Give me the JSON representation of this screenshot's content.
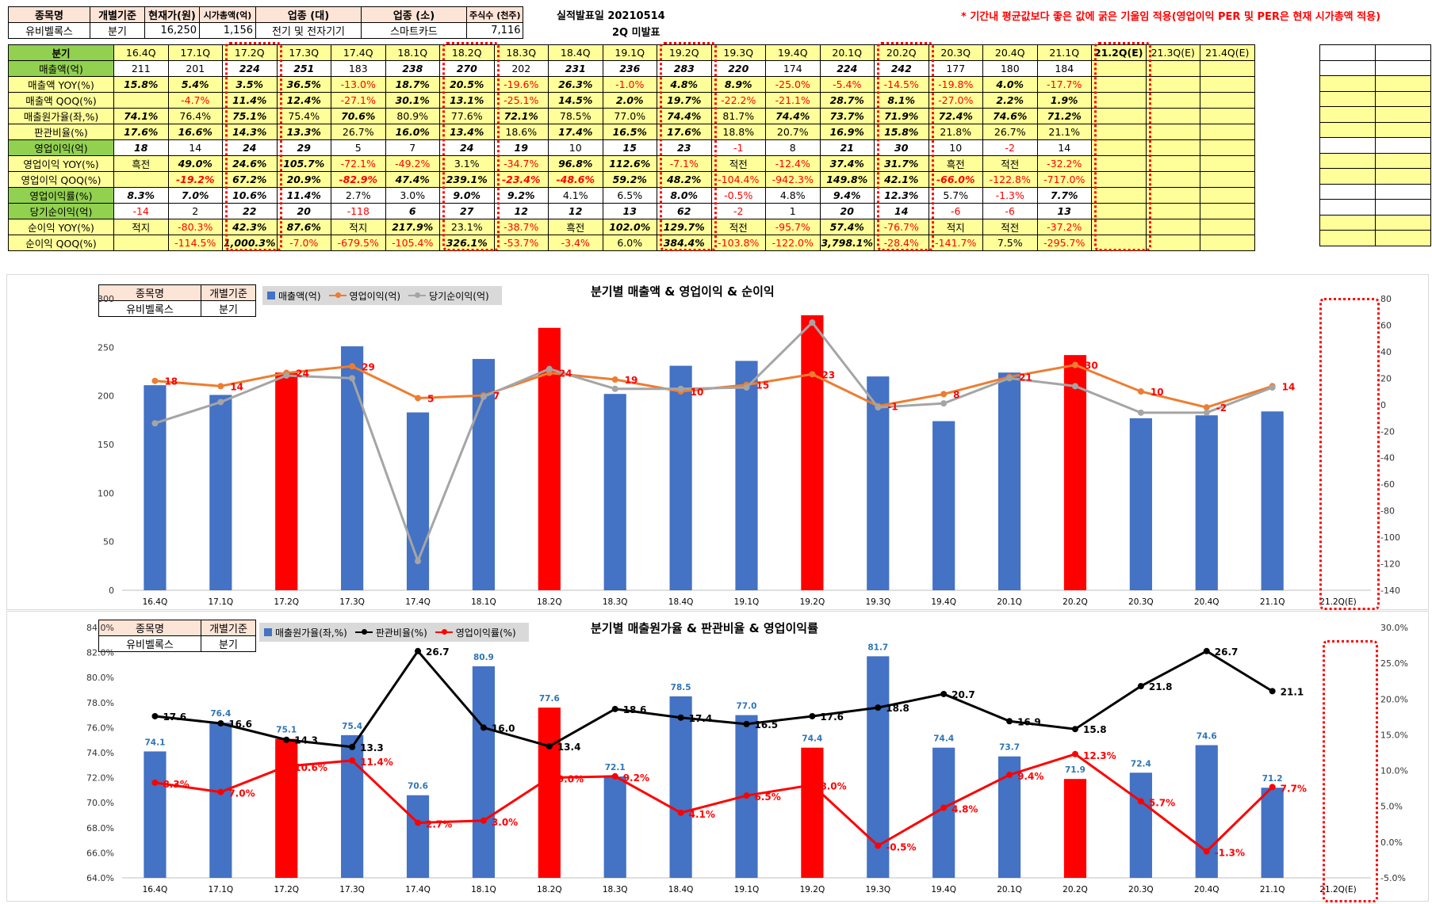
{
  "header": {
    "label_company": "종목명",
    "company": "유비벨록스",
    "label_basis": "개별기준",
    "basis": "분기",
    "label_price": "현재가(원)",
    "price": "16,250",
    "label_mcap": "시가총액(억)",
    "mcap": "1,156",
    "label_sector_l": "업종 (대)",
    "sector_l": "전기 및 전자기기",
    "label_sector_s": "업종 (소)",
    "sector_s": "스마트카드",
    "label_shares": "주식수 (천주)",
    "shares": "7,116",
    "announce_label": "실적발표일",
    "announce_date": "20210514",
    "announce_status": "2Q 미발표",
    "note": "* 기간내 평균값보다 좋은 값에 굵은 기울임 적용(영업이익 PER 및 PER은 현재 시가총액 적용)"
  },
  "table": {
    "corner": "분기",
    "quarters": [
      "16.4Q",
      "17.1Q",
      "17.2Q",
      "17.3Q",
      "17.4Q",
      "18.1Q",
      "18.2Q",
      "18.3Q",
      "18.4Q",
      "19.1Q",
      "19.2Q",
      "19.3Q",
      "19.4Q",
      "20.1Q",
      "20.2Q",
      "20.3Q",
      "20.4Q",
      "21.1Q",
      "21.2Q(E)",
      "21.3Q(E)",
      "21.4Q(E)"
    ],
    "rows": [
      {
        "label": "매출액(억)",
        "green": true,
        "cells": [
          "211",
          "201",
          "224",
          "251",
          "183",
          "238",
          "270",
          "202",
          "231",
          "236",
          "283",
          "220",
          "174",
          "224",
          "242",
          "177",
          "180",
          "184",
          "",
          "",
          ""
        ],
        "bold": [
          0,
          0,
          1,
          1,
          0,
          1,
          1,
          0,
          1,
          1,
          1,
          1,
          0,
          1,
          1,
          0,
          0,
          0
        ]
      },
      {
        "label": "매출액 YOY(%)",
        "green": false,
        "cells": [
          "15.8%",
          "5.4%",
          "3.5%",
          "36.5%",
          "-13.0%",
          "18.7%",
          "20.5%",
          "-19.6%",
          "26.3%",
          "-1.0%",
          "4.8%",
          "8.9%",
          "-25.0%",
          "-5.4%",
          "-14.5%",
          "-19.8%",
          "4.0%",
          "-17.7%",
          "",
          "",
          ""
        ],
        "bold": [
          1,
          1,
          1,
          1,
          0,
          1,
          1,
          0,
          1,
          0,
          1,
          1,
          0,
          0,
          0,
          0,
          1,
          0
        ]
      },
      {
        "label": "매출액 QOQ(%)",
        "green": false,
        "cells": [
          "",
          "-4.7%",
          "11.4%",
          "12.4%",
          "-27.1%",
          "30.1%",
          "13.1%",
          "-25.1%",
          "14.5%",
          "2.0%",
          "19.7%",
          "-22.2%",
          "-21.1%",
          "28.7%",
          "8.1%",
          "-27.0%",
          "2.2%",
          "1.9%",
          "",
          "",
          ""
        ],
        "bold": [
          0,
          0,
          1,
          1,
          0,
          1,
          1,
          0,
          1,
          1,
          1,
          0,
          0,
          1,
          1,
          0,
          1,
          1
        ]
      },
      {
        "label": "매출원가율(좌,%)",
        "green": false,
        "cells": [
          "74.1%",
          "76.4%",
          "75.1%",
          "75.4%",
          "70.6%",
          "80.9%",
          "77.6%",
          "72.1%",
          "78.5%",
          "77.0%",
          "74.4%",
          "81.7%",
          "74.4%",
          "73.7%",
          "71.9%",
          "72.4%",
          "74.6%",
          "71.2%",
          "",
          "",
          ""
        ],
        "bold": [
          1,
          0,
          1,
          0,
          1,
          0,
          0,
          1,
          0,
          0,
          1,
          0,
          1,
          1,
          1,
          1,
          1,
          1
        ]
      },
      {
        "label": "판관비율(%)",
        "green": false,
        "cells": [
          "17.6%",
          "16.6%",
          "14.3%",
          "13.3%",
          "26.7%",
          "16.0%",
          "13.4%",
          "18.6%",
          "17.4%",
          "16.5%",
          "17.6%",
          "18.8%",
          "20.7%",
          "16.9%",
          "15.8%",
          "21.8%",
          "26.7%",
          "21.1%",
          "",
          "",
          ""
        ],
        "bold": [
          1,
          1,
          1,
          1,
          0,
          1,
          1,
          0,
          1,
          1,
          1,
          0,
          0,
          1,
          1,
          0,
          0,
          0
        ]
      },
      {
        "label": "영업이익(억)",
        "green": true,
        "cells": [
          "18",
          "14",
          "24",
          "29",
          "5",
          "7",
          "24",
          "19",
          "10",
          "15",
          "23",
          "-1",
          "8",
          "21",
          "30",
          "10",
          "-2",
          "14",
          "",
          "",
          ""
        ],
        "bold": [
          1,
          0,
          1,
          1,
          0,
          0,
          1,
          1,
          0,
          1,
          1,
          0,
          0,
          1,
          1,
          0,
          0,
          0
        ]
      },
      {
        "label": "영업이익 YOY(%)",
        "green": false,
        "cells": [
          "흑전",
          "49.0%",
          "24.6%",
          "105.7%",
          "-72.1%",
          "-49.2%",
          "3.1%",
          "-34.7%",
          "96.8%",
          "112.6%",
          "-7.1%",
          "적전",
          "-12.4%",
          "37.4%",
          "31.7%",
          "흑전",
          "적전",
          "-32.2%",
          "",
          "",
          ""
        ],
        "bold": [
          0,
          1,
          1,
          1,
          0,
          0,
          0,
          0,
          1,
          1,
          0,
          0,
          0,
          1,
          1,
          0,
          0,
          0
        ]
      },
      {
        "label": "영업이익 QOQ(%)",
        "green": false,
        "cells": [
          "",
          "-19.2%",
          "67.2%",
          "20.9%",
          "-82.9%",
          "47.4%",
          "239.1%",
          "-23.4%",
          "-48.6%",
          "59.2%",
          "48.2%",
          "-104.4%",
          "-942.3%",
          "149.8%",
          "42.1%",
          "-66.0%",
          "-122.8%",
          "-717.0%",
          "",
          "",
          ""
        ],
        "bold": [
          0,
          1,
          1,
          1,
          1,
          1,
          1,
          1,
          1,
          1,
          1,
          0,
          0,
          1,
          1,
          1,
          0,
          0
        ]
      },
      {
        "label": "영업이익률(%)",
        "green": true,
        "cells": [
          "8.3%",
          "7.0%",
          "10.6%",
          "11.4%",
          "2.7%",
          "3.0%",
          "9.0%",
          "9.2%",
          "4.1%",
          "6.5%",
          "8.0%",
          "-0.5%",
          "4.8%",
          "9.4%",
          "12.3%",
          "5.7%",
          "-1.3%",
          "7.7%",
          "",
          "",
          ""
        ],
        "bold": [
          1,
          1,
          1,
          1,
          0,
          0,
          1,
          1,
          0,
          0,
          1,
          0,
          0,
          1,
          1,
          0,
          0,
          1
        ]
      },
      {
        "label": "당기순이익(억)",
        "green": true,
        "cells": [
          "-14",
          "2",
          "22",
          "20",
          "-118",
          "6",
          "27",
          "12",
          "12",
          "13",
          "62",
          "-2",
          "1",
          "20",
          "14",
          "-6",
          "-6",
          "13",
          "",
          "",
          ""
        ],
        "bold": [
          0,
          0,
          1,
          1,
          0,
          1,
          1,
          1,
          1,
          1,
          1,
          0,
          0,
          1,
          1,
          0,
          0,
          1
        ]
      },
      {
        "label": "순이익 YOY(%)",
        "green": false,
        "cells": [
          "적지",
          "-80.3%",
          "42.3%",
          "87.6%",
          "적지",
          "217.9%",
          "23.1%",
          "-38.7%",
          "흑전",
          "102.0%",
          "129.7%",
          "적전",
          "-95.7%",
          "57.4%",
          "-76.7%",
          "적지",
          "적전",
          "-37.2%",
          "",
          "",
          ""
        ],
        "bold": [
          0,
          0,
          1,
          1,
          0,
          1,
          0,
          0,
          0,
          1,
          1,
          0,
          0,
          1,
          0,
          0,
          0,
          0
        ]
      },
      {
        "label": "순이익 QOQ(%)",
        "green": false,
        "cells": [
          "",
          "-114.5%",
          "1,000.3%",
          "-7.0%",
          "-679.5%",
          "-105.4%",
          "326.1%",
          "-53.7%",
          "-3.4%",
          "6.0%",
          "384.4%",
          "-103.8%",
          "-122.0%",
          "3,798.1%",
          "-28.4%",
          "-141.7%",
          "7.5%",
          "-295.7%",
          "",
          "",
          ""
        ],
        "bold": [
          0,
          0,
          1,
          0,
          0,
          0,
          1,
          0,
          0,
          0,
          1,
          0,
          0,
          1,
          0,
          0,
          0,
          0
        ]
      }
    ]
  },
  "chart1": {
    "title": "분기별 매출액 & 영업이익 & 순이익",
    "mini": {
      "label_company": "종목명",
      "company": "유비벨록스",
      "label_basis": "개별기준",
      "basis": "분기"
    },
    "legend": [
      "매출액(억)",
      "영업이익(억)",
      "당기순이익(억)"
    ],
    "colors": {
      "bar": "#4472c4",
      "highlight": "#ff0000",
      "line1": "#ed7d31",
      "line2": "#a5a5a5",
      "label": "#ff0000"
    },
    "left_ticks": [
      "0",
      "50",
      "100",
      "150",
      "200",
      "250",
      "300"
    ],
    "right_ticks": [
      "-140",
      "-120",
      "-100",
      "-80",
      "-60",
      "-40",
      "-20",
      "0",
      "20",
      "40",
      "60",
      "80"
    ],
    "categories": [
      "16.4Q",
      "17.1Q",
      "17.2Q",
      "17.3Q",
      "17.4Q",
      "18.1Q",
      "18.2Q",
      "18.3Q",
      "18.4Q",
      "19.1Q",
      "19.2Q",
      "19.3Q",
      "19.4Q",
      "20.1Q",
      "20.2Q",
      "20.3Q",
      "20.4Q",
      "21.1Q",
      "21.2Q(E)"
    ],
    "op_labels": [
      "18",
      "14",
      "24",
      "29",
      "5",
      "7",
      "24",
      "19",
      "10",
      "15",
      "23",
      "-1",
      "8",
      "21",
      "30",
      "10",
      "-2",
      "14"
    ]
  },
  "chart2": {
    "title": "분기별 매출원가율 & 판관비율 & 영업이익률",
    "mini": {
      "label_company": "종목명",
      "company": "유비벨록스",
      "label_basis": "개별기준",
      "basis": "분기"
    },
    "legend": [
      "매출원가율(좌,%)",
      "판관비율(%)",
      "영업이익률(%)"
    ],
    "colors": {
      "bar": "#4472c4",
      "highlight": "#ff0000",
      "line1": "#000000",
      "line2": "#ff0000",
      "barlabel": "#2e75b6"
    },
    "left_ticks": [
      "64.0%",
      "66.0%",
      "68.0%",
      "70.0%",
      "72.0%",
      "74.0%",
      "76.0%",
      "78.0%",
      "80.0%",
      "82.0%",
      "84.0%"
    ],
    "right_ticks": [
      "-5.0%",
      "0.0%",
      "5.0%",
      "10.0%",
      "15.0%",
      "20.0%",
      "25.0%",
      "30.0%"
    ],
    "categories": [
      "16.4Q",
      "17.1Q",
      "17.2Q",
      "17.3Q",
      "17.4Q",
      "18.1Q",
      "18.2Q",
      "18.3Q",
      "18.4Q",
      "19.1Q",
      "19.2Q",
      "19.3Q",
      "19.4Q",
      "20.1Q",
      "20.2Q",
      "20.3Q",
      "20.4Q",
      "21.1Q",
      "21.2Q(E)"
    ],
    "bar_labels": [
      "74.1",
      "76.4",
      "75.1",
      "75.4",
      "70.6",
      "80.9",
      "77.6",
      "72.1",
      "78.5",
      "77.0",
      "74.4",
      "81.7",
      "74.4",
      "73.7",
      "71.9",
      "72.4",
      "74.6",
      "71.2"
    ],
    "sga_labels": [
      "17.6",
      "16.6",
      "14.3",
      "13.3",
      "26.7",
      "16.0",
      "13.4",
      "18.6",
      "17.4",
      "16.5",
      "17.6",
      "18.8",
      "20.7",
      "16.9",
      "15.8",
      "21.8",
      "26.7",
      "21.1"
    ],
    "opm_labels": [
      "8.3%",
      "7.0%",
      "10.6%",
      "11.4%",
      "2.7%",
      "3.0%",
      "9.0%",
      "9.2%",
      "4.1%",
      "6.5%",
      "8.0%",
      "-0.5%",
      "4.8%",
      "9.4%",
      "12.3%",
      "5.7%",
      "-1.3%",
      "7.7%"
    ]
  },
  "chart_data": [
    {
      "type": "bar",
      "title": "분기별 매출액 & 영업이익 & 순이익",
      "categories": [
        "16.4Q",
        "17.1Q",
        "17.2Q",
        "17.3Q",
        "17.4Q",
        "18.1Q",
        "18.2Q",
        "18.3Q",
        "18.4Q",
        "19.1Q",
        "19.2Q",
        "19.3Q",
        "19.4Q",
        "20.1Q",
        "20.2Q",
        "20.3Q",
        "20.4Q",
        "21.1Q",
        "21.2Q(E)"
      ],
      "series": [
        {
          "name": "매출액(억)",
          "axis": "left",
          "type": "bar",
          "values": [
            211,
            201,
            224,
            251,
            183,
            238,
            270,
            202,
            231,
            236,
            283,
            220,
            174,
            224,
            242,
            177,
            180,
            184,
            null
          ]
        },
        {
          "name": "영업이익(억)",
          "axis": "right",
          "type": "line",
          "values": [
            18,
            14,
            24,
            29,
            5,
            7,
            24,
            19,
            10,
            15,
            23,
            -1,
            8,
            21,
            30,
            10,
            -2,
            14,
            null
          ]
        },
        {
          "name": "당기순이익(억)",
          "axis": "right",
          "type": "line",
          "values": [
            -14,
            2,
            22,
            20,
            -118,
            6,
            27,
            12,
            12,
            13,
            62,
            -2,
            1,
            20,
            14,
            -6,
            -6,
            13,
            null
          ]
        }
      ],
      "highlight_categories": [
        "17.2Q",
        "18.2Q",
        "19.2Q",
        "20.2Q"
      ],
      "ylim": [
        0,
        300
      ],
      "y2lim": [
        -140,
        80
      ],
      "legend_position": "top-left"
    },
    {
      "type": "bar",
      "title": "분기별 매출원가율 & 판관비율 & 영업이익률",
      "categories": [
        "16.4Q",
        "17.1Q",
        "17.2Q",
        "17.3Q",
        "17.4Q",
        "18.1Q",
        "18.2Q",
        "18.3Q",
        "18.4Q",
        "19.1Q",
        "19.2Q",
        "19.3Q",
        "19.4Q",
        "20.1Q",
        "20.2Q",
        "20.3Q",
        "20.4Q",
        "21.1Q",
        "21.2Q(E)"
      ],
      "series": [
        {
          "name": "매출원가율(좌,%)",
          "axis": "left",
          "type": "bar",
          "values": [
            74.1,
            76.4,
            75.1,
            75.4,
            70.6,
            80.9,
            77.6,
            72.1,
            78.5,
            77.0,
            74.4,
            81.7,
            74.4,
            73.7,
            71.9,
            72.4,
            74.6,
            71.2,
            null
          ]
        },
        {
          "name": "판관비율(%)",
          "axis": "right",
          "type": "line",
          "values": [
            17.6,
            16.6,
            14.3,
            13.3,
            26.7,
            16.0,
            13.4,
            18.6,
            17.4,
            16.5,
            17.6,
            18.8,
            20.7,
            16.9,
            15.8,
            21.8,
            26.7,
            21.1,
            null
          ]
        },
        {
          "name": "영업이익률(%)",
          "axis": "right",
          "type": "line",
          "values": [
            8.3,
            7.0,
            10.6,
            11.4,
            2.7,
            3.0,
            9.0,
            9.2,
            4.1,
            6.5,
            8.0,
            -0.5,
            4.8,
            9.4,
            12.3,
            5.7,
            -1.3,
            7.7,
            null
          ]
        }
      ],
      "highlight_categories": [
        "17.2Q",
        "18.2Q",
        "19.2Q",
        "20.2Q"
      ],
      "ylim": [
        64,
        84
      ],
      "y2lim": [
        -5,
        30
      ],
      "legend_position": "top-left"
    }
  ]
}
